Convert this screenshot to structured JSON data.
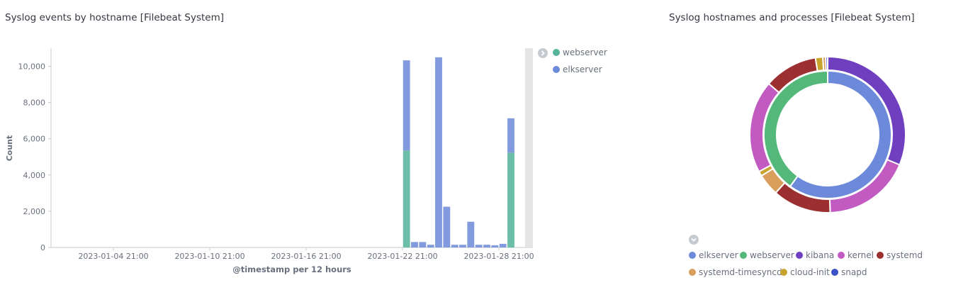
{
  "left_panel": {
    "title": "Syslog events by hostname [Filebeat System]",
    "legend": [
      {
        "label": "webserver",
        "color": "#54b399"
      },
      {
        "label": "elkserver",
        "color": "#6c8ad9"
      }
    ]
  },
  "right_panel": {
    "title": "Syslog hostnames and processes [Filebeat System]",
    "legend": [
      {
        "label": "elkserver",
        "color": "#6c8ad9"
      },
      {
        "label": "webserver",
        "color": "#54b87a"
      },
      {
        "label": "kibana",
        "color": "#6f3fbf"
      },
      {
        "label": "kernel",
        "color": "#c25bc1"
      },
      {
        "label": "systemd",
        "color": "#9c2f2f"
      },
      {
        "label": "systemd-timesyncd",
        "color": "#d99e5b"
      },
      {
        "label": "cloud-init",
        "color": "#c9a330"
      },
      {
        "label": "snapd",
        "color": "#3e52c4"
      }
    ]
  },
  "chart_data": [
    {
      "type": "bar",
      "title": "Syslog events by hostname [Filebeat System]",
      "xlabel": "@timestamp per 12 hours",
      "ylabel": "Count",
      "ylim": [
        0,
        11000
      ],
      "yticks": [
        "0",
        "2,000",
        "4,000",
        "6,000",
        "8,000",
        "10,000"
      ],
      "ytick_values": [
        0,
        2000,
        4000,
        6000,
        8000,
        10000
      ],
      "xticks": [
        "2023-01-04 21:00",
        "2023-01-10 21:00",
        "2023-01-16 21:00",
        "2023-01-22 21:00",
        "2023-01-28 21:00"
      ],
      "stacked": true,
      "bar_starts": [
        "2023-01-22 21:00",
        "2023-01-23 09:00",
        "2023-01-23 21:00",
        "2023-01-24 09:00",
        "2023-01-24 21:00",
        "2023-01-25 09:00",
        "2023-01-25 21:00",
        "2023-01-26 09:00",
        "2023-01-26 21:00",
        "2023-01-27 09:00",
        "2023-01-27 21:00",
        "2023-01-28 09:00",
        "2023-01-28 21:00",
        "2023-01-29 09:00"
      ],
      "series": [
        {
          "name": "webserver",
          "color": "#54b399",
          "values": [
            5350,
            0,
            0,
            0,
            0,
            0,
            0,
            0,
            0,
            0,
            0,
            0,
            0,
            5230
          ]
        },
        {
          "name": "elkserver",
          "color": "#6c8ad9",
          "values": [
            4980,
            300,
            300,
            150,
            10500,
            2250,
            150,
            150,
            1420,
            150,
            150,
            120,
            200,
            1900
          ]
        }
      ],
      "legend": "right",
      "grid": false
    },
    {
      "type": "pie",
      "title": "Syslog hostnames and processes [Filebeat System]",
      "donut": true,
      "rings": [
        {
          "name": "hostname",
          "slices": [
            {
              "label": "elkserver",
              "value": 60,
              "color": "#6c8ad9"
            },
            {
              "label": "webserver",
              "value": 40,
              "color": "#54b87a"
            }
          ]
        },
        {
          "name": "process",
          "slices": [
            {
              "label": "kibana",
              "value": 31,
              "color": "#6f3fbf"
            },
            {
              "label": "kernel",
              "value": 18,
              "color": "#c25bc1"
            },
            {
              "label": "systemd",
              "value": 12,
              "color": "#9c2f2f"
            },
            {
              "label": "systemd-timesyncd",
              "value": 4.5,
              "color": "#d99e5b"
            },
            {
              "label": "cloud-init",
              "value": 1,
              "color": "#c9a330"
            },
            {
              "label": "kernel",
              "value": 19,
              "color": "#c25bc1"
            },
            {
              "label": "systemd",
              "value": 11,
              "color": "#9c2f2f"
            },
            {
              "label": "cloud-init",
              "value": 1.5,
              "color": "#c9a330"
            },
            {
              "label": "systemd-timesyncd",
              "value": 0.6,
              "color": "#d99e5b"
            },
            {
              "label": "snapd",
              "value": 0.4,
              "color": "#3e52c4"
            }
          ]
        }
      ],
      "legend": "bottom"
    }
  ]
}
